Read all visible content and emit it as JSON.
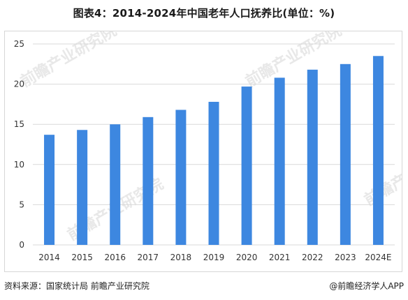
{
  "header": {
    "title": "图表4：2014-2024年中国老年人口抚养比(单位：%)"
  },
  "footer": {
    "source": "资料来源：国家统计局 前瞻产业研究院",
    "credit": "@前瞻经济学人APP"
  },
  "watermark": {
    "text": "前瞻产业研究院"
  },
  "colors": {
    "bar": "#3D87E0",
    "grid": "#D9D9D9",
    "axis_text": "#333333",
    "watermark": "#E8E8E8"
  },
  "chart_data": {
    "type": "bar",
    "title": "图表4：2014-2024年中国老年人口抚养比(单位：%)",
    "xlabel": "",
    "ylabel": "",
    "categories": [
      "2014",
      "2015",
      "2016",
      "2017",
      "2018",
      "2019",
      "2020",
      "2021",
      "2022",
      "2023",
      "2024E"
    ],
    "values": [
      13.7,
      14.3,
      15.0,
      15.9,
      16.8,
      17.8,
      19.7,
      20.8,
      21.8,
      22.5,
      23.5
    ],
    "ylim": [
      0,
      25
    ],
    "yticks": [
      "0",
      "5",
      "10",
      "15",
      "20",
      "25"
    ],
    "grid": true,
    "legend": "none"
  }
}
